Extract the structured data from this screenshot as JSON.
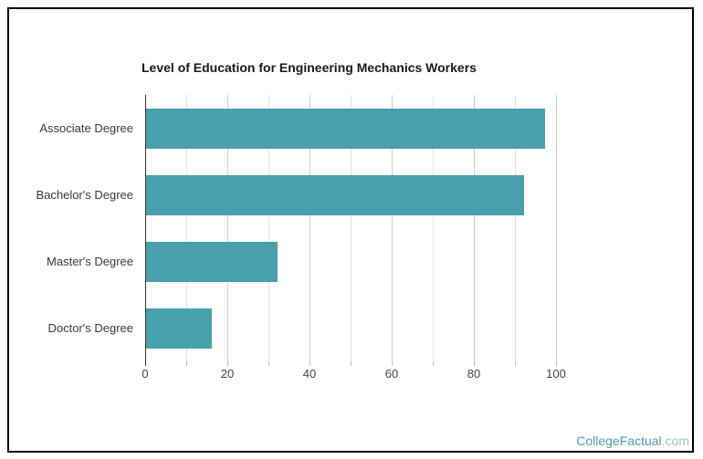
{
  "chart_data": {
    "type": "bar",
    "orientation": "horizontal",
    "title": "Level of Education for Engineering Mechanics Workers",
    "categories": [
      "Associate Degree",
      "Bachelor's Degree",
      "Master's Degree",
      "Doctor's Degree"
    ],
    "values": [
      97,
      92,
      32,
      16
    ],
    "xlabel": "",
    "ylabel": "",
    "xlim": [
      0,
      110
    ],
    "x_ticks": [
      0,
      20,
      40,
      60,
      80,
      100
    ],
    "minor_tick_step": 10,
    "grid": true,
    "legend_position": "none",
    "bar_color": "#4A9FAF"
  },
  "watermark": {
    "brand": "CollegeFactual",
    "suffix": ".com",
    "brand_color": "#4A9FAF",
    "suffix_color": "#9CC2C9"
  },
  "frame": {
    "border_color": "#000000",
    "background": "#ffffff"
  }
}
